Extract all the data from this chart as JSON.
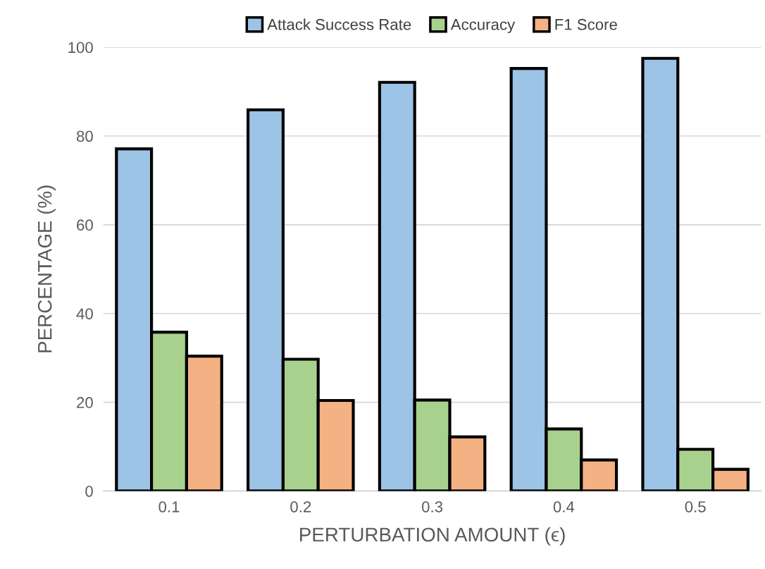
{
  "chart_data": {
    "type": "bar",
    "xlabel": "PERTURBATION AMOUNT (ϵ)",
    "ylabel": "PERCENTAGE (%)",
    "categories": [
      "0.1",
      "0.2",
      "0.3",
      "0.4",
      "0.5"
    ],
    "series": [
      {
        "name": "Attack Success Rate",
        "color": "#9dc3e6",
        "values": [
          77.1,
          85.9,
          92.1,
          95.2,
          97.5
        ]
      },
      {
        "name": "Accuracy",
        "color": "#a9d18e",
        "values": [
          35.8,
          29.7,
          20.5,
          14.0,
          9.4
        ]
      },
      {
        "name": "F1 Score",
        "color": "#f4b183",
        "values": [
          30.4,
          20.4,
          12.2,
          7.0,
          4.9
        ]
      }
    ],
    "ylim": [
      0,
      100
    ],
    "yticks": [
      0,
      20,
      40,
      60,
      80,
      100
    ],
    "grid": "y",
    "legend": "top"
  }
}
